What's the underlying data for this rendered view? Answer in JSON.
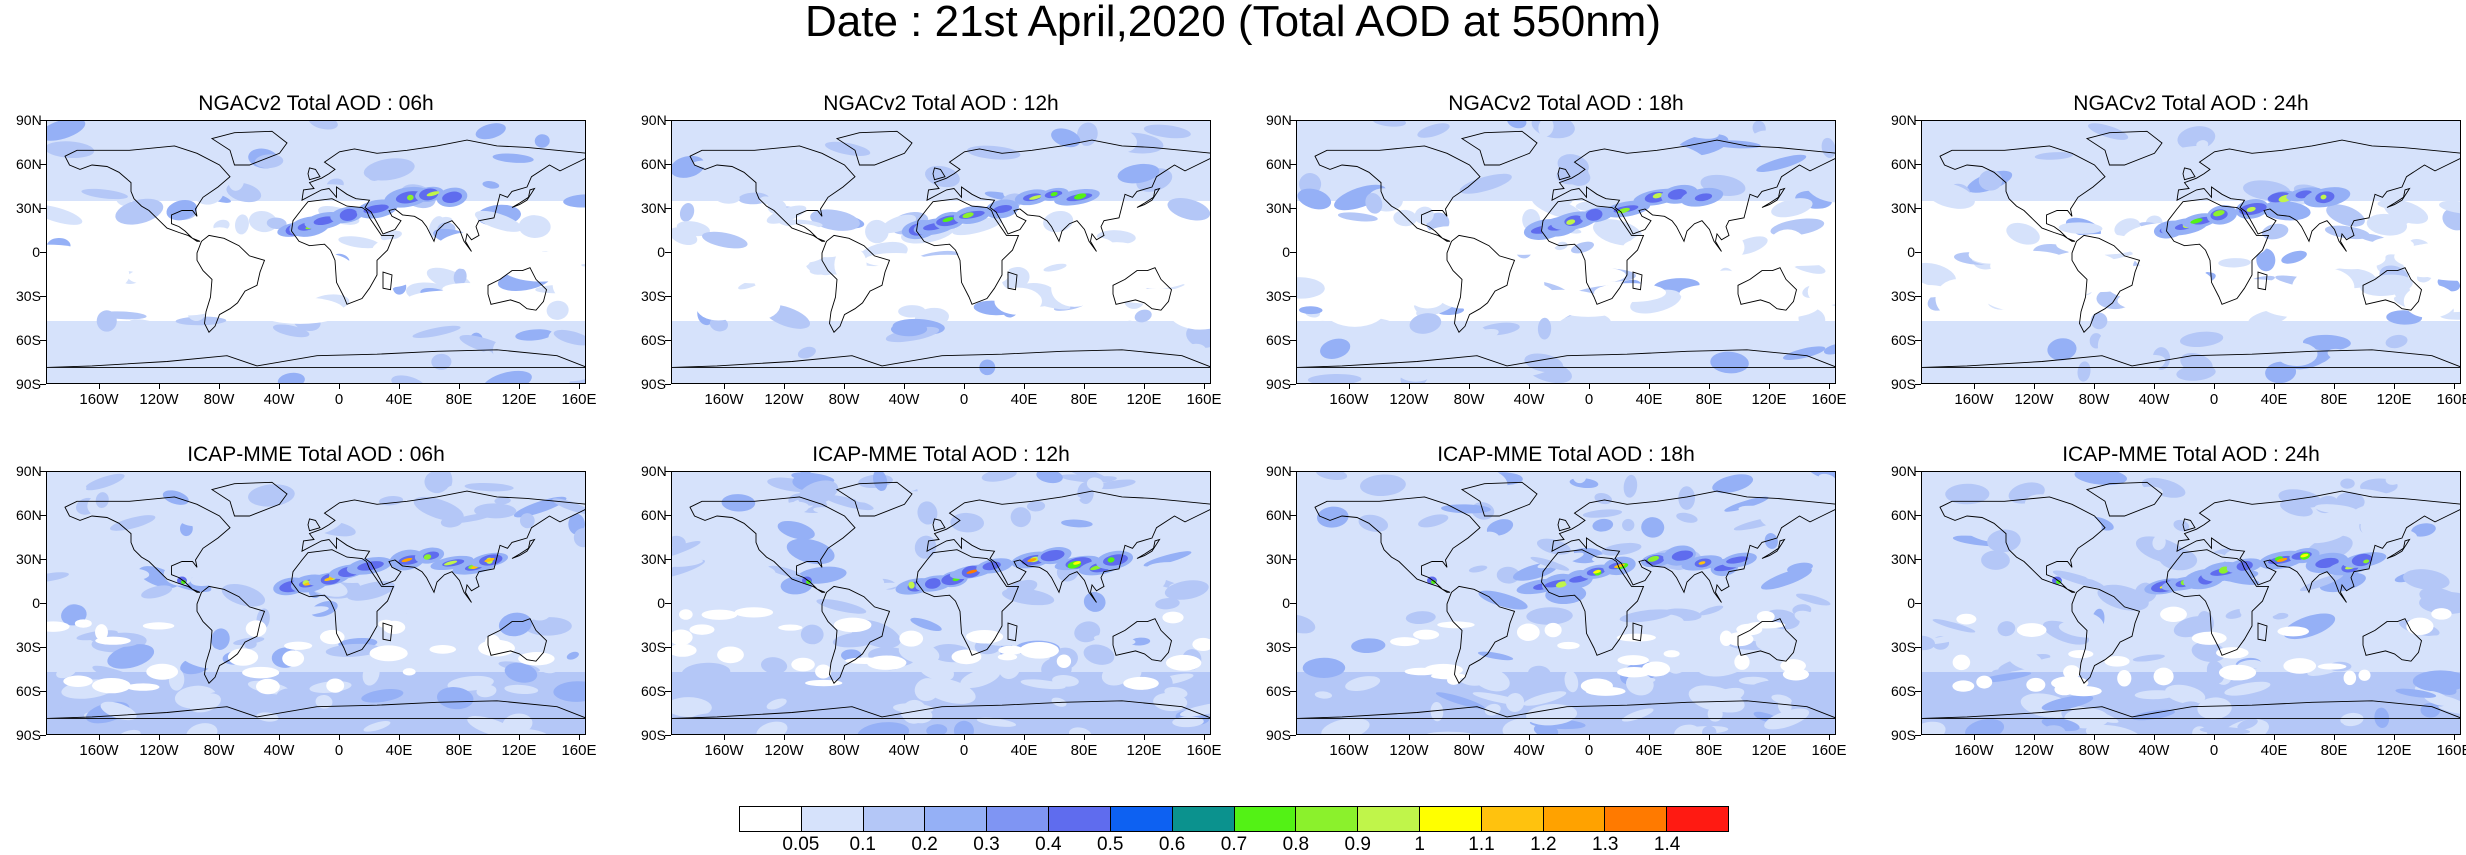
{
  "title": "Date : 21st April,2020 (Total AOD at 550nm)",
  "panels": [
    {
      "title": "NGACv2 Total AOD : 06h",
      "model": "ngac"
    },
    {
      "title": "NGACv2 Total AOD : 12h",
      "model": "ngac"
    },
    {
      "title": "NGACv2 Total AOD : 18h",
      "model": "ngac"
    },
    {
      "title": "NGACv2 Total AOD : 24h",
      "model": "ngac"
    },
    {
      "title": "ICAP-MME Total AOD : 06h",
      "model": "icap"
    },
    {
      "title": "ICAP-MME Total AOD : 12h",
      "model": "icap"
    },
    {
      "title": "ICAP-MME Total AOD : 18h",
      "model": "icap"
    },
    {
      "title": "ICAP-MME Total AOD : 24h",
      "model": "icap"
    }
  ],
  "lat_labels": [
    "90N",
    "60N",
    "30N",
    "0",
    "30S",
    "60S",
    "90S"
  ],
  "lon_labels": [
    "160W",
    "120W",
    "80W",
    "40W",
    "0",
    "40E",
    "80E",
    "120E",
    "160E"
  ],
  "colorbar": {
    "labels": [
      "0.05",
      "0.1",
      "0.2",
      "0.3",
      "0.4",
      "0.5",
      "0.6",
      "0.7",
      "0.8",
      "0.9",
      "1",
      "1.1",
      "1.2",
      "1.3",
      "1.4"
    ],
    "colors": [
      "#ffffff",
      "#d6e2fb",
      "#b4c7f7",
      "#95b0f6",
      "#7f95f3",
      "#5f6cee",
      "#0d61f2",
      "#0b928e",
      "#53f215",
      "#8bf12c",
      "#c0f54a",
      "#ffff00",
      "#ffc20e",
      "#ffa200",
      "#ff7a00",
      "#ff1a12"
    ]
  }
}
